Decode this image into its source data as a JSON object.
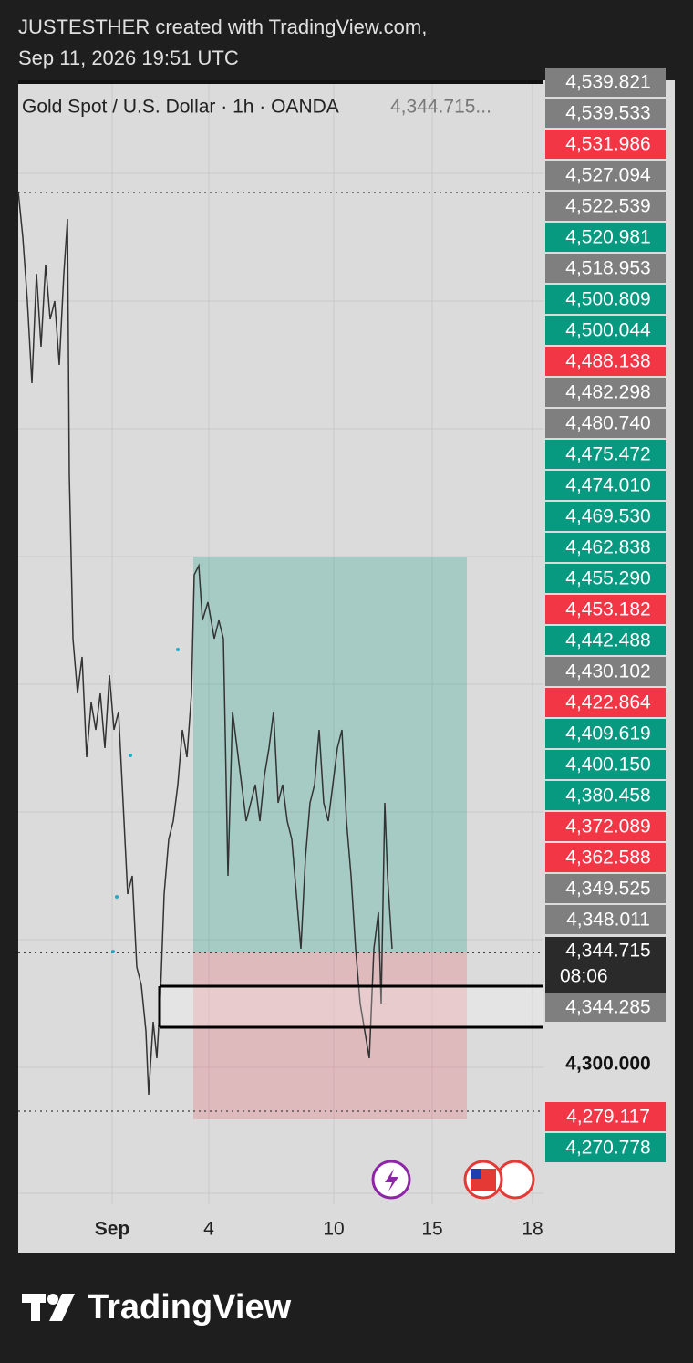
{
  "header": {
    "author_line": "JUSTESTHER created with TradingView.com,",
    "date_line": "Sep 11, 2026 19:51 UTC"
  },
  "legend": {
    "symbol": "Gold Spot / U.S. Dollar · 1h · OANDA",
    "price": "4,344.715..."
  },
  "price_labels": [
    {
      "label": "4,539.821",
      "color": "gray"
    },
    {
      "label": "4,539.533",
      "color": "gray"
    },
    {
      "label": "4,531.986",
      "color": "red"
    },
    {
      "label": "4,527.094",
      "color": "gray"
    },
    {
      "label": "4,522.539",
      "color": "gray"
    },
    {
      "label": "4,520.981",
      "color": "green"
    },
    {
      "label": "4,518.953",
      "color": "gray"
    },
    {
      "label": "4,500.809",
      "color": "green"
    },
    {
      "label": "4,500.044",
      "color": "green"
    },
    {
      "label": "4,488.138",
      "color": "red"
    },
    {
      "label": "4,482.298",
      "color": "gray"
    },
    {
      "label": "4,480.740",
      "color": "gray"
    },
    {
      "label": "4,475.472",
      "color": "green"
    },
    {
      "label": "4,474.010",
      "color": "green"
    },
    {
      "label": "4,469.530",
      "color": "green"
    },
    {
      "label": "4,462.838",
      "color": "green"
    },
    {
      "label": "4,455.290",
      "color": "green"
    },
    {
      "label": "4,453.182",
      "color": "red"
    },
    {
      "label": "4,442.488",
      "color": "green"
    },
    {
      "label": "4,430.102",
      "color": "gray"
    },
    {
      "label": "4,422.864",
      "color": "red"
    },
    {
      "label": "4,409.619",
      "color": "green"
    },
    {
      "label": "4,400.150",
      "color": "green"
    },
    {
      "label": "4,380.458",
      "color": "green"
    },
    {
      "label": "4,372.089",
      "color": "red"
    },
    {
      "label": "4,362.588",
      "color": "red"
    },
    {
      "label": "4,349.525",
      "color": "gray"
    },
    {
      "label": "4,348.011",
      "color": "gray"
    }
  ],
  "current_price": {
    "label": "4,344.715",
    "countdown": "08:06"
  },
  "lower_labels": [
    {
      "label": "4,344.285",
      "color": "gray"
    },
    {
      "label": "4,300.000",
      "color": "none"
    },
    {
      "label": "4,279.117",
      "color": "red"
    },
    {
      "label": "4,270.778",
      "color": "green"
    }
  ],
  "x_axis": [
    "Sep",
    "4",
    "10",
    "15",
    "18"
  ],
  "logo": "TradingView"
}
